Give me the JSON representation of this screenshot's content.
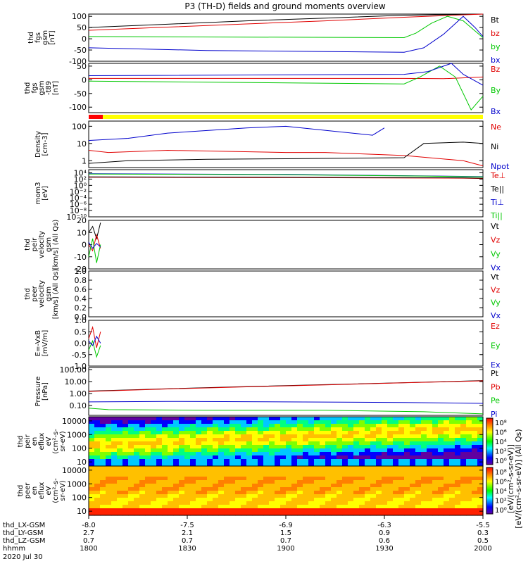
{
  "title": "P3 (TH-D) fields and ground moments overview",
  "date_label": "2020 Jul 30",
  "colors": {
    "black": "#000000",
    "red": "#e00000",
    "green": "#00c800",
    "blue": "#0000cc",
    "mode_bar_red": "#ff0000",
    "mode_bar_yellow": "#ffff00"
  },
  "x_axis": {
    "ticks": [
      {
        "x": 0.0,
        "rows": [
          "-8.0",
          "2.7",
          "0.7",
          "1800"
        ]
      },
      {
        "x": 0.25,
        "rows": [
          "-7.5",
          "2.1",
          "0.7",
          "1830"
        ]
      },
      {
        "x": 0.5,
        "rows": [
          "-6.9",
          "1.5",
          "0.7",
          "1900"
        ]
      },
      {
        "x": 0.75,
        "rows": [
          "-6.3",
          "0.9",
          "0.6",
          "1930"
        ]
      },
      {
        "x": 1.0,
        "rows": [
          "-5.5",
          "0.3",
          "0.5",
          "2000"
        ]
      }
    ],
    "row_labels": [
      "thd_LX-GSM",
      "thd_LY-GSM",
      "thd_LZ-GSM",
      "hhmm"
    ]
  },
  "chart_data": [
    {
      "type": "line",
      "ylabel": [
        "thd",
        "fgs",
        "gsm",
        "[nT]"
      ],
      "ylim": [
        -100,
        110
      ],
      "yticks": [
        100,
        50,
        0,
        -50,
        -100
      ],
      "tick_labels": [
        "100",
        "50",
        "0",
        "-50",
        "-100"
      ],
      "series": [
        {
          "name": "Bt",
          "color": "black",
          "x": [
            0,
            0.2,
            0.4,
            0.6,
            0.8,
            1.0
          ],
          "y": [
            50,
            65,
            80,
            92,
            105,
            115
          ]
        },
        {
          "name": "bz",
          "color": "red",
          "x": [
            0,
            0.2,
            0.4,
            0.6,
            0.8,
            1.0
          ],
          "y": [
            38,
            52,
            66,
            80,
            96,
            110
          ]
        },
        {
          "name": "by",
          "color": "green",
          "x": [
            0,
            0.8,
            0.83,
            0.87,
            0.91,
            0.95,
            0.99,
            1.0
          ],
          "y": [
            10,
            5,
            25,
            70,
            100,
            80,
            20,
            5
          ]
        },
        {
          "name": "bx",
          "color": "blue",
          "x": [
            0,
            0.3,
            0.6,
            0.8,
            0.85,
            0.9,
            0.95,
            0.98,
            1.0
          ],
          "y": [
            -40,
            -52,
            -57,
            -60,
            -40,
            20,
            100,
            50,
            10
          ]
        }
      ]
    },
    {
      "type": "line",
      "ylabel": [
        "thd",
        "fgs",
        "gsm",
        "-t89",
        "[nT]"
      ],
      "ylim": [
        -120,
        60
      ],
      "yticks": [
        50,
        0,
        -50,
        -100
      ],
      "tick_labels": [
        "50",
        "0",
        "-50",
        "-100"
      ],
      "series": [
        {
          "name": "Bz",
          "color": "red",
          "x": [
            0,
            0.8,
            0.9,
            1.0
          ],
          "y": [
            5,
            5,
            4,
            10
          ]
        },
        {
          "name": "By",
          "color": "green",
          "x": [
            0,
            0.8,
            0.84,
            0.89,
            0.93,
            0.97,
            1.0
          ],
          "y": [
            -5,
            -15,
            10,
            50,
            10,
            -110,
            -60
          ]
        },
        {
          "name": "Bx",
          "color": "blue",
          "x": [
            0,
            0.8,
            0.86,
            0.92,
            0.95,
            1.0
          ],
          "y": [
            15,
            20,
            30,
            60,
            20,
            -20
          ]
        }
      ]
    },
    {
      "type": "line",
      "ylabel": [
        "Density",
        "[cm-3]"
      ],
      "log": true,
      "ylim": [
        0.4,
        200
      ],
      "yticks": [
        100,
        10,
        1
      ],
      "tick_labels": [
        "100",
        "10",
        "1"
      ],
      "series": [
        {
          "name": "Ne",
          "color": "red",
          "x": [
            0,
            0.05,
            0.2,
            0.5,
            0.6,
            0.8,
            0.95,
            1.0
          ],
          "y": [
            4,
            3,
            4,
            3,
            3,
            2,
            1,
            0.5
          ]
        },
        {
          "name": "Ni",
          "color": "black",
          "x": [
            0,
            0.1,
            0.3,
            0.5,
            0.8,
            0.85,
            0.95,
            1.0
          ],
          "y": [
            0.7,
            1.0,
            1.2,
            1.3,
            1.5,
            10,
            12,
            10
          ]
        },
        {
          "name": "Npot",
          "color": "blue",
          "x": [
            0,
            0.1,
            0.2,
            0.4,
            0.5,
            0.72,
            0.75
          ],
          "y": [
            15,
            20,
            40,
            80,
            100,
            30,
            80
          ]
        }
      ]
    },
    {
      "type": "line",
      "ylabel": [
        "mom3",
        "[eV]"
      ],
      "log": true,
      "ylim": [
        1e-10,
        100000.0
      ],
      "yticks": [
        10000.0,
        100.0,
        1,
        0.01,
        0.0001,
        1e-06,
        1e-08,
        1e-10
      ],
      "tick_labels": [
        "10⁴",
        "10²",
        "10⁰",
        "10⁻²",
        "10⁻⁴",
        "10⁻⁶",
        "10⁻⁸",
        "10⁻¹⁰"
      ],
      "series": [
        {
          "name": "Te⊥",
          "color": "red",
          "x": [
            0,
            0.5,
            0.95,
            1.0
          ],
          "y": [
            400,
            300,
            200,
            150
          ]
        },
        {
          "name": "Te||",
          "color": "black",
          "x": [
            0,
            0.5,
            0.95,
            1.0
          ],
          "y": [
            500,
            400,
            250,
            200
          ]
        },
        {
          "name": "Ti⊥",
          "color": "blue",
          "x": [
            0,
            0.5,
            0.85,
            1.0
          ],
          "y": [
            5000,
            3000,
            1000,
            600
          ]
        },
        {
          "name": "Ti||",
          "color": "green",
          "x": [
            0,
            0.5,
            0.85,
            1.0
          ],
          "y": [
            4000,
            2500,
            900,
            500
          ]
        }
      ]
    },
    {
      "type": "line",
      "ylabel": [
        "thd",
        "peir",
        "velocity",
        "gsm",
        "[km/s] (All Qs)"
      ],
      "ylim": [
        -20,
        20
      ],
      "yticks": [
        20,
        10,
        0,
        -10,
        -20
      ],
      "tick_labels": [
        "20",
        "10",
        "0",
        "-10",
        "-20"
      ],
      "series": [
        {
          "name": "Vt",
          "color": "black",
          "x": [
            0,
            0.01,
            0.02,
            0.03
          ],
          "y": [
            10,
            15,
            5,
            18
          ]
        },
        {
          "name": "Vz",
          "color": "red",
          "x": [
            0,
            0.01,
            0.02,
            0.03
          ],
          "y": [
            0,
            -5,
            8,
            -3
          ]
        },
        {
          "name": "Vy",
          "color": "green",
          "x": [
            0,
            0.01,
            0.02,
            0.03
          ],
          "y": [
            -10,
            5,
            -15,
            0
          ]
        },
        {
          "name": "Vx",
          "color": "blue",
          "x": [
            0,
            0.01,
            0.02,
            0.03
          ],
          "y": [
            2,
            -3,
            1,
            -2
          ]
        }
      ]
    },
    {
      "type": "line",
      "ylabel": [
        "thd",
        "peer",
        "velocity",
        "gsm",
        "[km/s] (All Qs)"
      ],
      "ylim": [
        0,
        1
      ],
      "yticks": [
        1.0,
        0.8,
        0.6,
        0.4,
        0.2,
        0.0
      ],
      "tick_labels": [
        "1.0",
        "0.8",
        "0.6",
        "0.4",
        "0.2",
        "0.0"
      ],
      "series": [
        {
          "name": "Vt",
          "color": "black",
          "x": [],
          "y": []
        },
        {
          "name": "Vz",
          "color": "red",
          "x": [],
          "y": []
        },
        {
          "name": "Vy",
          "color": "green",
          "x": [],
          "y": []
        },
        {
          "name": "Vx",
          "color": "blue",
          "x": [],
          "y": []
        }
      ]
    },
    {
      "type": "line",
      "ylabel": [
        "E=-VxB",
        "[mV/m]"
      ],
      "ylim": [
        -1,
        1
      ],
      "yticks": [
        1.0,
        0.5,
        0.0,
        -0.5,
        -1.0
      ],
      "tick_labels": [
        "1.0",
        "0.5",
        "0.0",
        "-0.5",
        "-1.0"
      ],
      "series": [
        {
          "name": "Ez",
          "color": "red",
          "x": [
            0,
            0.01,
            0.02,
            0.03
          ],
          "y": [
            0.2,
            0.7,
            -0.2,
            0.5
          ]
        },
        {
          "name": "Ey",
          "color": "green",
          "x": [
            0,
            0.01,
            0.02,
            0.03
          ],
          "y": [
            -0.3,
            0.1,
            -0.6,
            -0.1
          ]
        },
        {
          "name": "Ex",
          "color": "blue",
          "x": [
            0,
            0.01,
            0.02,
            0.03
          ],
          "y": [
            0.1,
            -0.1,
            0.3,
            0.0
          ]
        }
      ]
    },
    {
      "type": "line",
      "ylabel": [
        "Pressure",
        "[nPa]"
      ],
      "log": true,
      "ylim": [
        0.015,
        150
      ],
      "yticks": [
        100,
        10,
        1,
        0.1
      ],
      "tick_labels": [
        "100.00",
        "10.00",
        "1.00",
        "0.10"
      ],
      "series": [
        {
          "name": "Pt",
          "color": "black",
          "x": [
            0,
            0.2,
            0.4,
            0.6,
            0.8,
            1.0
          ],
          "y": [
            1.6,
            2.5,
            3.8,
            5.5,
            8,
            12
          ]
        },
        {
          "name": "Pb",
          "color": "red",
          "x": [
            0,
            0.2,
            0.4,
            0.6,
            0.8,
            1.0
          ],
          "y": [
            1.5,
            2.4,
            3.6,
            5.3,
            7.8,
            11.5
          ]
        },
        {
          "name": "Pe",
          "color": "green",
          "x": [
            0,
            0.05,
            0.3,
            0.6,
            0.85,
            1.0
          ],
          "y": [
            0.06,
            0.045,
            0.04,
            0.04,
            0.03,
            0.02
          ]
        },
        {
          "name": "Pi",
          "color": "blue",
          "x": [
            0,
            0.2,
            0.5,
            0.8,
            1.0
          ],
          "y": [
            0.2,
            0.22,
            0.2,
            0.18,
            0.15
          ]
        }
      ]
    },
    {
      "type": "heatmap",
      "ylabel": [
        "thd",
        "peir",
        "en",
        "eflux",
        "eV",
        "(cm²-s-",
        "sr-eV)"
      ],
      "log": true,
      "ylim": [
        5,
        20000
      ],
      "yticks": [
        10000,
        1000,
        100,
        10
      ],
      "tick_labels": [
        "10000",
        "1000",
        "100",
        "10"
      ],
      "colorbar": {
        "ticks": [
          "10⁸",
          "10⁶",
          "10⁴",
          "10²",
          "10⁰"
        ]
      }
    },
    {
      "type": "heatmap",
      "ylabel": [
        "thd",
        "peer",
        "en",
        "eflux",
        "eV",
        "(cm²-s-",
        "sr-eV)"
      ],
      "log": true,
      "ylim": [
        5,
        20000
      ],
      "yticks": [
        10000,
        1000,
        100,
        10
      ],
      "tick_labels": [
        "10000",
        "1000",
        "100",
        "10"
      ],
      "colorbar": {
        "ticks": [
          "10⁸",
          "10⁶",
          "10⁴",
          "10²",
          "10⁰"
        ]
      }
    }
  ],
  "colorbar_label": "[eV/(cm²-s-sr-eV)] (All Qs)",
  "colorbar2_label": "[eV/(cm²-s-sr-eV)]"
}
